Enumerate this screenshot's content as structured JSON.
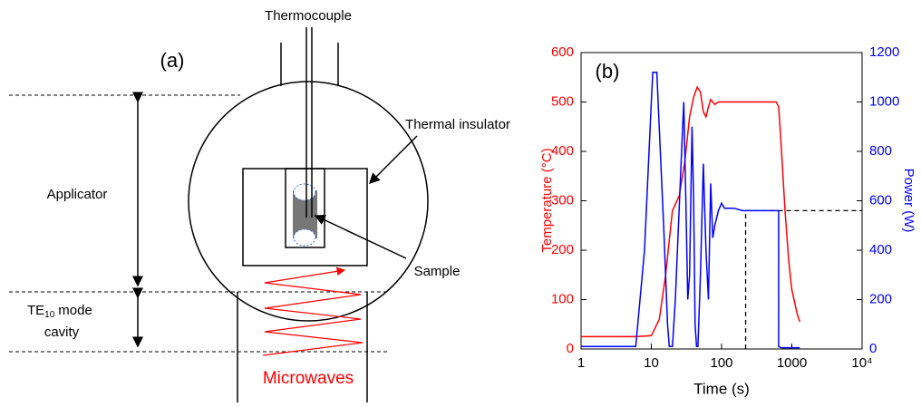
{
  "diagram": {
    "panel_label": "(a)",
    "thermocouple": "Thermocouple",
    "insulator": "Thermal insulator",
    "applicator": "Applicator",
    "sample": "Sample",
    "cavity": {
      "mode": "TE",
      "subscript": "10",
      "rest": "mode",
      "line2": "cavity"
    },
    "microwaves": "Microwaves"
  },
  "chart_data": {
    "type": "line",
    "panel_label": "(b)",
    "xlabel": "Time (s)",
    "ylabel": "Temperature (°C)",
    "y2label": "Power (W)",
    "xscale": "log",
    "xlim": [
      1,
      10000
    ],
    "xticks": [
      1,
      10,
      100,
      1000,
      {
        "value": 10000,
        "label": "10⁴"
      }
    ],
    "ylim": [
      0,
      600
    ],
    "yticks": [
      0,
      100,
      200,
      300,
      400,
      500,
      600
    ],
    "y2lim": [
      0,
      1200
    ],
    "y2ticks": [
      0,
      200,
      400,
      600,
      800,
      1000,
      1200
    ],
    "series": [
      {
        "color": "#ff0000",
        "axis": "y",
        "x": [
          1,
          6,
          10,
          13,
          16,
          18,
          20,
          25,
          30,
          35,
          40,
          45,
          50,
          55,
          60,
          65,
          70,
          80,
          90,
          100,
          200,
          400,
          600,
          650,
          700,
          800,
          900,
          1000,
          1200,
          1300
        ],
        "values": [
          25,
          25,
          27,
          60,
          150,
          220,
          280,
          310,
          380,
          470,
          510,
          530,
          520,
          480,
          470,
          490,
          505,
          495,
          500,
          500,
          500,
          500,
          500,
          490,
          420,
          280,
          180,
          120,
          70,
          55
        ]
      },
      {
        "color": "#0000ff",
        "axis": "y2",
        "x": [
          1,
          6,
          8,
          10,
          10.5,
          12,
          12.5,
          15,
          17,
          18,
          20,
          22,
          27,
          29,
          31,
          33,
          35,
          38,
          40,
          42,
          44,
          46,
          50,
          55,
          60,
          65,
          70,
          75,
          80,
          90,
          100,
          110,
          150,
          200,
          400,
          650,
          650,
          700,
          1300
        ],
        "values": [
          10,
          10,
          400,
          1000,
          1120,
          1120,
          1000,
          500,
          100,
          10,
          10,
          200,
          800,
          1000,
          600,
          200,
          300,
          900,
          600,
          100,
          10,
          10,
          300,
          750,
          400,
          200,
          670,
          450,
          500,
          560,
          590,
          570,
          570,
          560,
          560,
          560,
          10,
          5,
          5
        ]
      }
    ],
    "guides": [
      {
        "axis": "y2",
        "x": [
          220,
          10000
        ],
        "y": [
          560,
          560
        ]
      },
      {
        "axis": "y2",
        "x": [
          220,
          220
        ],
        "y": [
          0,
          560
        ]
      }
    ]
  }
}
